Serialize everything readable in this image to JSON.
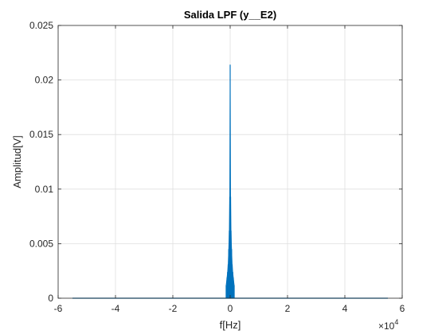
{
  "chart_data": {
    "type": "line",
    "title": "Salida LPF (y__E2)",
    "xlabel": "f[Hz]",
    "ylabel": "Amplitud[V]",
    "x_exponent_label": "×10",
    "x_exponent_power": "4",
    "xlim": [
      -60000,
      60000
    ],
    "ylim": [
      0,
      0.025
    ],
    "x_ticks": [
      -60000,
      -40000,
      -20000,
      0,
      20000,
      40000,
      60000
    ],
    "x_tick_labels": [
      "-6",
      "-4",
      "-2",
      "0",
      "2",
      "4",
      "6"
    ],
    "y_ticks": [
      0,
      0.005,
      0.01,
      0.015,
      0.02,
      0.025
    ],
    "y_tick_labels": [
      "0",
      "0.005",
      "0.01",
      "0.015",
      "0.02",
      "0.025"
    ],
    "grid": true,
    "series": [
      {
        "color": "#0072bd",
        "x_range": [
          -55000,
          55000
        ],
        "peaks": [
          {
            "x": -1400,
            "y": 0.0012
          },
          {
            "x": -1100,
            "y": 0.0019
          },
          {
            "x": -900,
            "y": 0.0024
          },
          {
            "x": -700,
            "y": 0.0031
          },
          {
            "x": -500,
            "y": 0.0045
          },
          {
            "x": -300,
            "y": 0.0062
          },
          {
            "x": -150,
            "y": 0.0093
          },
          {
            "x": 0,
            "y": 0.0214
          },
          {
            "x": 150,
            "y": 0.0093
          },
          {
            "x": 300,
            "y": 0.0062
          },
          {
            "x": 500,
            "y": 0.0045
          },
          {
            "x": 700,
            "y": 0.0031
          },
          {
            "x": 900,
            "y": 0.0024
          },
          {
            "x": 1100,
            "y": 0.0019
          },
          {
            "x": 1400,
            "y": 0.0012
          }
        ]
      }
    ]
  }
}
